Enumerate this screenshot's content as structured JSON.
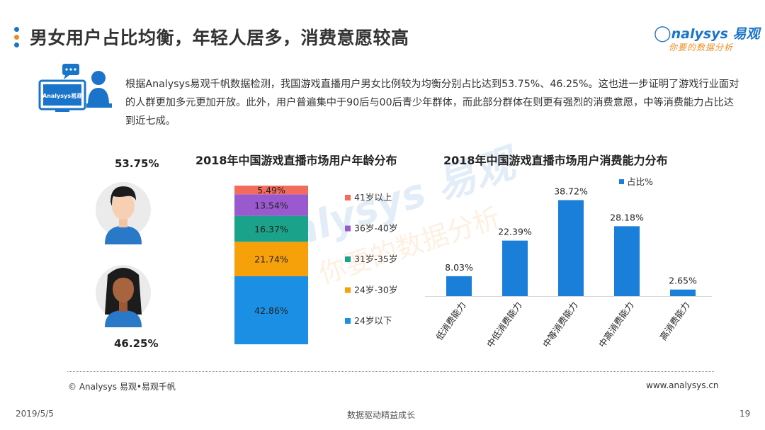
{
  "header": {
    "title": "男女用户占比均衡，年轻人居多，消费意愿较高",
    "logo_text": "nalysys 易观",
    "logo_slogan": "你要的数据分析",
    "icon_label": "Analysys易观",
    "dot_colors": [
      "#1a74c9",
      "#f08a1c",
      "#1a74c9"
    ]
  },
  "intro": {
    "text": "根据Analysys易观千帆数据检测，我国游戏直播用户男女比例较为均衡分别占比达到53.75%、46.25%。这也进一步证明了游戏行业面对的人群更加多元更加开放。此外，用户普遍集中于90后与00后青少年群体，而此部分群体在则更有强烈的消费意愿，中等消费能力占比达到近七成。"
  },
  "gender": {
    "male_pct": "53.75%",
    "female_pct": "46.25%"
  },
  "chart_data": [
    {
      "type": "bar",
      "stacked": true,
      "title": "2018年中国游戏直播市场用户年龄分布",
      "categories": [
        ""
      ],
      "series": [
        {
          "name": "24岁以下",
          "values": [
            42.86
          ],
          "label": "42.86%",
          "color": "#1a8fe3"
        },
        {
          "name": "24岁-30岁",
          "values": [
            21.74
          ],
          "label": "21.74%",
          "color": "#f7a10a"
        },
        {
          "name": "31岁-35岁",
          "values": [
            16.37
          ],
          "label": "16.37%",
          "color": "#1aa38a"
        },
        {
          "name": "36岁-40岁",
          "values": [
            13.54
          ],
          "label": "13.54%",
          "color": "#9b59d0"
        },
        {
          "name": "41岁以上",
          "values": [
            5.49
          ],
          "label": "5.49%",
          "color": "#f26b5b"
        }
      ],
      "legend_position": "right"
    },
    {
      "type": "bar",
      "title": "2018年中国游戏直播市场用户消费能力分布",
      "categories": [
        "低消费能力",
        "中低消费能力",
        "中等消费能力",
        "中高消费能力",
        "高消费能力"
      ],
      "series": [
        {
          "name": "占比%",
          "values": [
            8.03,
            22.39,
            38.72,
            28.18,
            2.65
          ],
          "color": "#1a7fd9"
        }
      ],
      "data_labels": [
        "8.03%",
        "22.39%",
        "38.72%",
        "28.18%",
        "2.65%"
      ],
      "ylim": [
        0,
        40
      ],
      "legend_position": "top-right",
      "grid": false
    }
  ],
  "footer": {
    "copyright": "© Analysys 易观•易观千帆",
    "website": "www.analysys.cn",
    "date": "2019/5/5",
    "slogan": "数据驱动精益成长",
    "page": "19"
  }
}
